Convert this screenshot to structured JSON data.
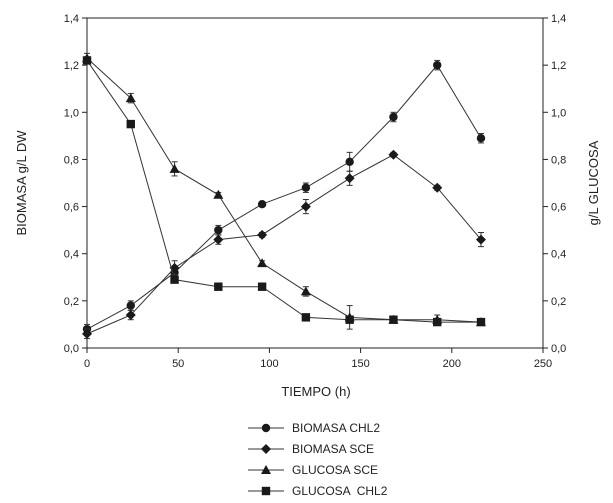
{
  "chart_data": {
    "type": "line",
    "title": "",
    "xlabel": "TIEMPO (h)",
    "ylabel": "BIOMASA g/L DW",
    "y2label": "g/L GLUCOSA",
    "xlim": [
      0,
      250
    ],
    "ylim": [
      0,
      1.4
    ],
    "y2lim": [
      0,
      1.4
    ],
    "x_ticks": [
      "0",
      "50",
      "100",
      "150",
      "200",
      "250"
    ],
    "y_ticks": [
      "0,0",
      "0,2",
      "0,4",
      "0,6",
      "0,8",
      "1,0",
      "1,2",
      "1,4"
    ],
    "y2_ticks": [
      "0,0",
      "0,2",
      "0,4",
      "0,6",
      "0,8",
      "1,0",
      "1,2",
      "1,4"
    ],
    "grid": false,
    "legend_position": "bottom-center",
    "series": [
      {
        "name": "BIOMASA CHL2",
        "marker": "circle",
        "x": [
          0,
          24,
          48,
          72,
          96,
          120,
          144,
          168,
          192,
          216
        ],
        "y": [
          0.08,
          0.18,
          0.32,
          0.5,
          0.61,
          0.68,
          0.79,
          0.98,
          1.2,
          0.89
        ],
        "err": [
          0.02,
          0.02,
          0.02,
          0.02,
          0.01,
          0.02,
          0.04,
          0.02,
          0.02,
          0.02
        ]
      },
      {
        "name": "BIOMASA SCE",
        "marker": "diamond",
        "x": [
          0,
          24,
          48,
          72,
          96,
          120,
          144,
          168,
          192,
          216
        ],
        "y": [
          0.06,
          0.14,
          0.34,
          0.46,
          0.48,
          0.6,
          0.72,
          0.82,
          0.68,
          0.46
        ],
        "err": [
          0.02,
          0.02,
          0.03,
          0.02,
          0.01,
          0.03,
          0.03,
          0.01,
          0.01,
          0.03
        ]
      },
      {
        "name": "GLUCOSA SCE",
        "marker": "triangle",
        "x": [
          0,
          24,
          48,
          72,
          96,
          120,
          144,
          168,
          192,
          216
        ],
        "y": [
          1.23,
          1.06,
          0.76,
          0.65,
          0.36,
          0.24,
          0.13,
          0.12,
          0.12,
          0.11
        ],
        "err": [
          0.02,
          0.02,
          0.03,
          0.01,
          0.01,
          0.02,
          0.05,
          0.01,
          0.02,
          0.01
        ]
      },
      {
        "name": "GLUCOSA  CHL2",
        "marker": "square",
        "x": [
          0,
          24,
          48,
          72,
          96,
          120,
          144,
          168,
          192,
          216
        ],
        "y": [
          1.22,
          0.95,
          0.29,
          0.26,
          0.26,
          0.13,
          0.12,
          0.12,
          0.11,
          0.11
        ],
        "err": [
          0.01,
          0.01,
          0.01,
          0.01,
          0.01,
          0.01,
          0.01,
          0.01,
          0.01,
          0.01
        ]
      }
    ]
  }
}
